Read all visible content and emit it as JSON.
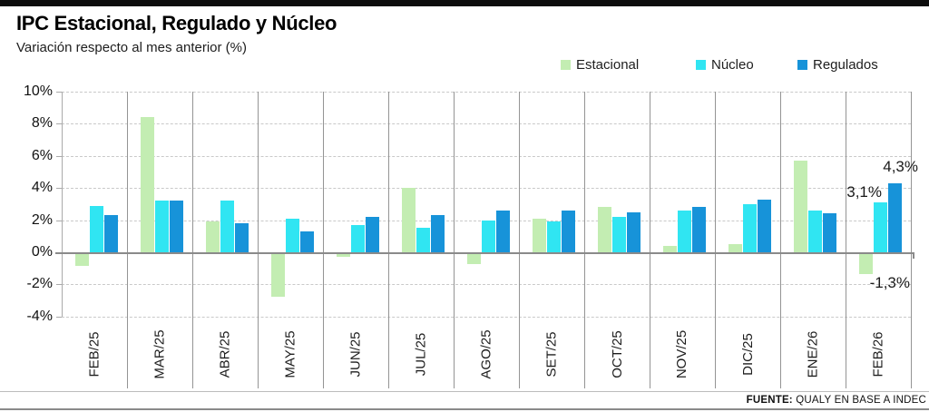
{
  "header": {
    "title": "IPC Estacional, Regulado y Núcleo",
    "subtitle": "Variación respecto al mes anterior (%)"
  },
  "legend": [
    {
      "label": "Estacional",
      "color": "#c3edb2"
    },
    {
      "label": "Núcleo",
      "color": "#30e5f2"
    },
    {
      "label": "Regulados",
      "color": "#1793d9"
    }
  ],
  "chart_data": {
    "type": "bar",
    "title": "IPC Estacional, Regulado y Núcleo",
    "subtitle": "Variación respecto al mes anterior (%)",
    "categories": [
      "FEB/25",
      "MAR/25",
      "ABR/25",
      "MAY/25",
      "JUN/25",
      "JUL/25",
      "AGO/25",
      "SET/25",
      "OCT/25",
      "NOV/25",
      "DIC/25",
      "ENE/26",
      "FEB/26"
    ],
    "series": [
      {
        "name": "Estacional",
        "color": "#c3edb2",
        "values": [
          -0.8,
          8.4,
          1.9,
          -2.7,
          -0.2,
          4.0,
          -0.7,
          2.1,
          2.8,
          0.4,
          0.5,
          5.7,
          -1.3
        ]
      },
      {
        "name": "Núcleo",
        "color": "#30e5f2",
        "values": [
          2.9,
          3.2,
          3.2,
          2.1,
          1.7,
          1.5,
          2.0,
          1.9,
          2.2,
          2.6,
          3.0,
          2.6,
          3.1
        ]
      },
      {
        "name": "Regulados",
        "color": "#1793d9",
        "values": [
          2.3,
          3.2,
          1.8,
          1.3,
          2.2,
          2.3,
          2.6,
          2.6,
          2.5,
          2.8,
          3.3,
          2.4,
          4.3
        ]
      }
    ],
    "ylim": [
      -4,
      10
    ],
    "ytick_step": 2,
    "ytick_labels": [
      "10%",
      "8%",
      "6%",
      "4%",
      "2%",
      "0%",
      "-2%",
      "-4%"
    ],
    "grid": "horizontal dashed lines, solid vertical month separators, solid zero line",
    "legend_position": "top-right",
    "annotations": [
      {
        "text": "4,3%",
        "series": "Regulados",
        "category": "FEB/26"
      },
      {
        "text": "3,1%",
        "series": "Núcleo",
        "category": "FEB/26"
      },
      {
        "text": "-1,3%",
        "series": "Estacional",
        "category": "FEB/26"
      }
    ]
  },
  "footer": {
    "source_label": "FUENTE:",
    "source_text": "QUALY EN BASE A INDEC"
  }
}
